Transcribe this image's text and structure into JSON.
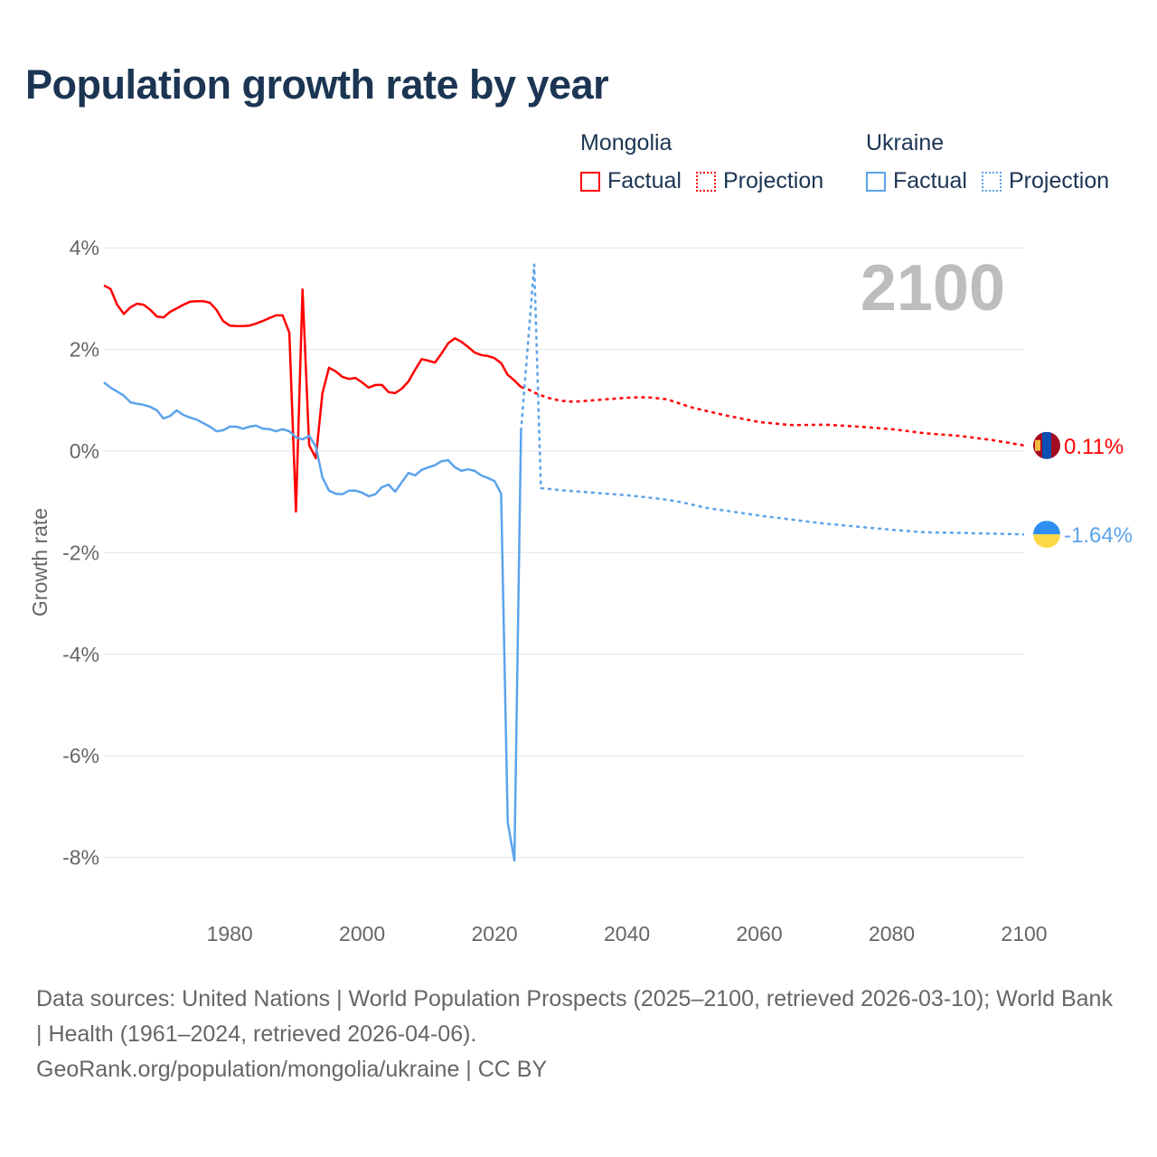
{
  "title": "Population growth rate by year",
  "legend": {
    "groups": [
      {
        "name": "Mongolia",
        "factual": "Factual",
        "projection": "Projection",
        "color": "#ff0000"
      },
      {
        "name": "Ukraine",
        "factual": "Factual",
        "projection": "Projection",
        "color": "#5ba3eb"
      }
    ]
  },
  "footer": {
    "sources": "Data sources: United Nations | World Population Prospects (2025–2100, retrieved 2026-03-10); World Bank | Health (1961–2024, retrieved 2026-04-06).",
    "link": "GeoRank.org/population/mongolia/ukraine | CC BY"
  },
  "chart_data": {
    "type": "line",
    "title": "Population growth rate by year",
    "xlabel": "",
    "ylabel": "Growth rate",
    "xlim": [
      1961,
      2100
    ],
    "ylim": [
      -9,
      4
    ],
    "yticks": [
      4,
      2,
      0,
      -2,
      -4,
      -6,
      -8
    ],
    "ytick_labels": [
      "4%",
      "2%",
      "0%",
      "-2%",
      "-4%",
      "-6%",
      "-8%"
    ],
    "xticks": [
      1980,
      2000,
      2020,
      2040,
      2060,
      2080,
      2100
    ],
    "xtick_labels": [
      "1980",
      "2000",
      "2020",
      "2040",
      "2060",
      "2080",
      "2100"
    ],
    "year_watermark": "2100",
    "grid": true,
    "legend_position": "top-right",
    "series": [
      {
        "name": "Mongolia Factual",
        "color": "#ff0000",
        "style": "solid",
        "x": [
          1961,
          1962,
          1963,
          1964,
          1965,
          1966,
          1967,
          1968,
          1969,
          1970,
          1971,
          1972,
          1973,
          1974,
          1975,
          1976,
          1977,
          1978,
          1979,
          1980,
          1981,
          1982,
          1983,
          1984,
          1985,
          1986,
          1987,
          1988,
          1989,
          1990,
          1991,
          1992,
          1993,
          1994,
          1995,
          1996,
          1997,
          1998,
          1999,
          2000,
          2001,
          2002,
          2003,
          2004,
          2005,
          2006,
          2007,
          2008,
          2009,
          2010,
          2011,
          2012,
          2013,
          2014,
          2015,
          2016,
          2017,
          2018,
          2019,
          2020,
          2021,
          2022,
          2023,
          2024
        ],
        "y": [
          3.26,
          3.19,
          2.88,
          2.7,
          2.83,
          2.9,
          2.88,
          2.78,
          2.65,
          2.63,
          2.74,
          2.81,
          2.88,
          2.94,
          2.95,
          2.95,
          2.92,
          2.78,
          2.56,
          2.47,
          2.46,
          2.46,
          2.47,
          2.51,
          2.56,
          2.62,
          2.67,
          2.67,
          2.33,
          -1.19,
          3.18,
          0.12,
          -0.14,
          1.14,
          1.64,
          1.57,
          1.46,
          1.42,
          1.44,
          1.35,
          1.25,
          1.3,
          1.3,
          1.16,
          1.14,
          1.23,
          1.37,
          1.6,
          1.81,
          1.78,
          1.74,
          1.92,
          2.12,
          2.22,
          2.15,
          2.05,
          1.94,
          1.89,
          1.87,
          1.83,
          1.73,
          1.5,
          1.39,
          1.26
        ]
      },
      {
        "name": "Mongolia Projection",
        "color": "#ff0000",
        "style": "dotted",
        "x": [
          2024,
          2025,
          2026,
          2028,
          2030,
          2032,
          2035,
          2040,
          2043,
          2046,
          2050,
          2055,
          2060,
          2065,
          2070,
          2075,
          2080,
          2085,
          2090,
          2095,
          2100
        ],
        "y": [
          1.26,
          1.22,
          1.15,
          1.05,
          0.99,
          0.97,
          1.0,
          1.05,
          1.06,
          1.02,
          0.85,
          0.7,
          0.57,
          0.51,
          0.52,
          0.48,
          0.43,
          0.35,
          0.3,
          0.22,
          0.11
        ]
      },
      {
        "name": "Ukraine Factual",
        "color": "#5ba3eb",
        "style": "solid",
        "x": [
          1961,
          1962,
          1963,
          1964,
          1965,
          1966,
          1967,
          1968,
          1969,
          1970,
          1971,
          1972,
          1973,
          1974,
          1975,
          1976,
          1977,
          1978,
          1979,
          1980,
          1981,
          1982,
          1983,
          1984,
          1985,
          1986,
          1987,
          1988,
          1989,
          1990,
          1991,
          1992,
          1993,
          1994,
          1995,
          1996,
          1997,
          1998,
          1999,
          2000,
          2001,
          2002,
          2003,
          2004,
          2005,
          2006,
          2007,
          2008,
          2009,
          2010,
          2011,
          2012,
          2013,
          2014,
          2015,
          2016,
          2017,
          2018,
          2019,
          2020,
          2021,
          2022,
          2023,
          2024
        ],
        "y": [
          1.35,
          1.25,
          1.17,
          1.09,
          0.96,
          0.93,
          0.91,
          0.87,
          0.8,
          0.64,
          0.69,
          0.8,
          0.71,
          0.66,
          0.62,
          0.55,
          0.48,
          0.39,
          0.41,
          0.48,
          0.48,
          0.44,
          0.48,
          0.5,
          0.44,
          0.43,
          0.39,
          0.43,
          0.39,
          0.27,
          0.23,
          0.3,
          0.09,
          -0.52,
          -0.78,
          -0.84,
          -0.85,
          -0.78,
          -0.78,
          -0.82,
          -0.89,
          -0.85,
          -0.71,
          -0.66,
          -0.8,
          -0.61,
          -0.43,
          -0.48,
          -0.37,
          -0.32,
          -0.28,
          -0.2,
          -0.18,
          -0.32,
          -0.39,
          -0.36,
          -0.39,
          -0.48,
          -0.53,
          -0.59,
          -0.84,
          -7.31,
          -8.06,
          0.39
        ]
      },
      {
        "name": "Ukraine Projection",
        "color": "#5ba3eb",
        "style": "dotted",
        "x": [
          2024,
          2026,
          2027,
          2030,
          2035,
          2040,
          2045,
          2048,
          2052,
          2060,
          2065,
          2070,
          2080,
          2085,
          2090,
          2100
        ],
        "y": [
          0.39,
          3.67,
          -0.73,
          -0.77,
          -0.82,
          -0.87,
          -0.94,
          -1.0,
          -1.12,
          -1.27,
          -1.35,
          -1.43,
          -1.55,
          -1.6,
          -1.61,
          -1.64
        ]
      }
    ],
    "end_labels": [
      {
        "country": "Mongolia",
        "value": 0.11,
        "label": "0.11%",
        "color": "#ff0000"
      },
      {
        "country": "Ukraine",
        "value": -1.64,
        "label": "-1.64%",
        "color": "#5ba3eb"
      }
    ]
  }
}
